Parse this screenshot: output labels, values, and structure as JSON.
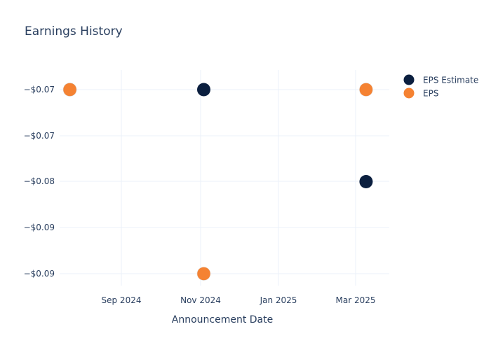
{
  "chart_data": {
    "type": "scatter",
    "title": "Earnings History",
    "xlabel": "Announcement Date",
    "ylabel": "",
    "x_ticks": [
      "Sep 2024",
      "Nov 2024",
      "Jan 2025",
      "Mar 2025"
    ],
    "y_ticks": [
      "−$0.07",
      "−$0.07",
      "−$0.08",
      "−$0.09",
      "−$0.09"
    ],
    "x": [
      "2024-07-23",
      "2024-11-04",
      "2025-03-10"
    ],
    "series": [
      {
        "name": "EPS Estimate",
        "color": "#0b1f3f",
        "values": [
          -0.07,
          -0.07,
          -0.08
        ]
      },
      {
        "name": "EPS",
        "color": "#f58232",
        "values": [
          -0.07,
          -0.09,
          -0.07
        ]
      }
    ],
    "legend_position": "top-right",
    "grid": true
  }
}
